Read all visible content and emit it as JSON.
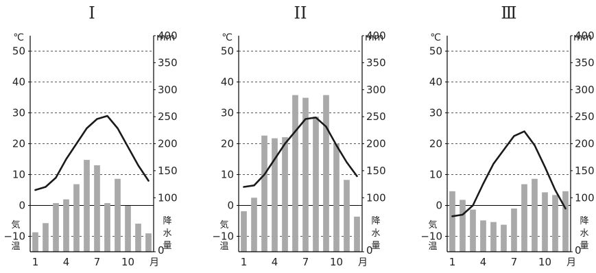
{
  "chart_data": [
    {
      "type": "bar+line",
      "title": "I",
      "x": [
        "1",
        "2",
        "3",
        "4",
        "5",
        "6",
        "7",
        "8",
        "9",
        "10",
        "11",
        "12"
      ],
      "xtick_labels": [
        "1",
        "4",
        "7",
        "10"
      ],
      "x_unit": "月",
      "temperature": [
        5,
        6,
        9,
        15,
        20,
        25,
        28,
        29,
        25,
        19,
        13,
        8
      ],
      "precipitation": [
        36,
        53,
        90,
        97,
        125,
        170,
        160,
        90,
        135,
        85,
        52,
        34
      ],
      "left_axis": {
        "unit": "℃",
        "label": "気温",
        "ylim": [
          -15,
          55
        ],
        "ticks": [
          -10,
          0,
          10,
          20,
          30,
          40,
          50
        ]
      },
      "right_axis": {
        "unit": "mm",
        "label": "降水量",
        "ylim": [
          0,
          400
        ],
        "ticks": [
          0,
          100,
          150,
          200,
          250,
          300,
          350,
          400
        ]
      },
      "grid": "dashed horizontal"
    },
    {
      "type": "bar+line",
      "title": "II",
      "x": [
        "1",
        "2",
        "3",
        "4",
        "5",
        "6",
        "7",
        "8",
        "9",
        "10",
        "11",
        "12"
      ],
      "xtick_labels": [
        "1",
        "4",
        "7",
        "10"
      ],
      "x_unit": "月",
      "temperature": [
        6,
        6.5,
        10,
        15,
        20,
        24,
        28,
        28.5,
        25.5,
        19.5,
        14,
        9.5
      ],
      "precipitation": [
        75,
        100,
        215,
        210,
        212,
        290,
        285,
        250,
        290,
        200,
        133,
        65
      ],
      "left_axis": {
        "unit": "℃",
        "label": "気温",
        "ylim": [
          -15,
          55
        ],
        "ticks": [
          -10,
          0,
          10,
          20,
          30,
          40,
          50
        ]
      },
      "right_axis": {
        "unit": "mm",
        "label": "降水量",
        "ylim": [
          0,
          400
        ],
        "ticks": [
          0,
          100,
          150,
          200,
          250,
          300,
          350,
          400
        ]
      },
      "grid": "dashed horizontal"
    },
    {
      "type": "bar+line",
      "title": "Ⅲ",
      "x": [
        "1",
        "2",
        "3",
        "4",
        "5",
        "6",
        "7",
        "8",
        "9",
        "10",
        "11",
        "12"
      ],
      "xtick_labels": [
        "1",
        "4",
        "7",
        "10"
      ],
      "x_unit": "月",
      "temperature": [
        -3.5,
        -3,
        0,
        7,
        13.5,
        18,
        22.5,
        24,
        19.5,
        12.5,
        5,
        -1
      ],
      "precipitation": [
        112,
        96,
        78,
        58,
        55,
        50,
        80,
        125,
        135,
        110,
        105,
        112
      ],
      "left_axis": {
        "unit": "℃",
        "label": "気温",
        "ylim": [
          -15,
          55
        ],
        "ticks": [
          -10,
          0,
          10,
          20,
          30,
          40,
          50
        ]
      },
      "right_axis": {
        "unit": "mm",
        "label": "降水量",
        "ylim": [
          0,
          400
        ],
        "ticks": [
          0,
          100,
          150,
          200,
          250,
          300,
          350,
          400
        ]
      },
      "grid": "dashed horizontal"
    }
  ],
  "colors": {
    "bar": "#a9a9a9",
    "line": "#1a1a1a",
    "grid": "#555555",
    "axis": "#000000",
    "text": "#222222"
  }
}
